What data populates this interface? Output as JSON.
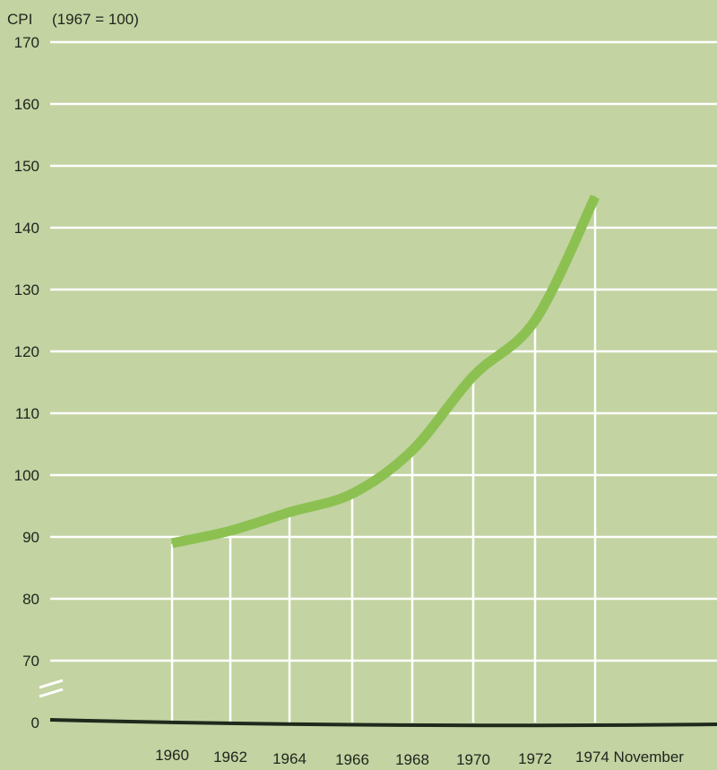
{
  "chart_data": {
    "type": "line",
    "title": "",
    "ylabel": "CPI",
    "ylabel_note": "(1967 = 100)",
    "xlabel": "",
    "y_ticks": [
      "170",
      "160",
      "150",
      "140",
      "130",
      "120",
      "110",
      "100",
      "90",
      "80",
      "70",
      "0"
    ],
    "y_tick_values": [
      170,
      160,
      150,
      140,
      130,
      120,
      110,
      100,
      90,
      80,
      70,
      0
    ],
    "y_axis_break": "between 0 and 70",
    "x_ticks": [
      "1960",
      "1962",
      "1964",
      "1966",
      "1968",
      "1970",
      "1972",
      "1974 November"
    ],
    "series": [
      {
        "x": [
          "1960",
          "1962",
          "1964",
          "1966",
          "1968",
          "1970",
          "1972",
          "1974 November"
        ],
        "values": [
          89,
          91,
          94,
          97,
          104,
          116,
          125,
          145
        ]
      }
    ],
    "grid": true,
    "colors": {
      "background": "#c3d3a2",
      "grid": "#ffffff",
      "line": "#8cc152",
      "baseline": "#1f2a1c",
      "text": "#1f241c"
    }
  }
}
